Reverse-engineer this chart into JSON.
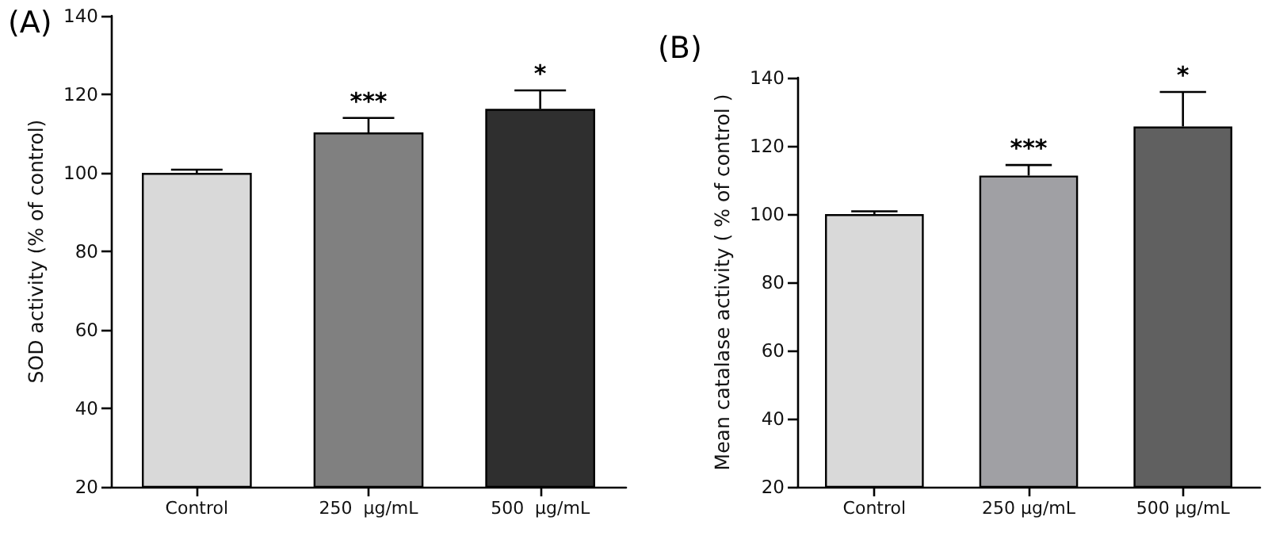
{
  "chart_data": [
    {
      "type": "bar",
      "title": "(A)",
      "ylabel": "SOD activity (% of control)",
      "categories": [
        "Control",
        "250  µg/mL",
        "500  µg/mL"
      ],
      "values": [
        100,
        110.3,
        116.3
      ],
      "colors": [
        "#d9d9d9",
        "#808080",
        "#2f2f2f"
      ],
      "errors": [
        [
          100,
          100.8
        ],
        [
          110.3,
          114
        ],
        [
          116.3,
          121
        ]
      ],
      "ylim": [
        20,
        140
      ],
      "yticks": [
        20,
        40,
        60,
        80,
        100,
        120,
        140
      ],
      "annotations": [
        {
          "text": "***",
          "x": "250  µg/mL",
          "y": 114
        },
        {
          "text": "*",
          "x": "500  µg/mL",
          "y": 121
        }
      ]
    },
    {
      "type": "bar",
      "title": "(B)",
      "ylabel": "Mean catalase activity ( % of control )",
      "categories": [
        "Control",
        "250 µg/mL",
        "500 µg/mL"
      ],
      "values": [
        100,
        111.3,
        125.7
      ],
      "colors": [
        "#d9d9d9",
        "#a0a0a4",
        "#606060"
      ],
      "errors": [
        [
          100,
          100.8
        ],
        [
          111.3,
          114.4
        ],
        [
          125.7,
          135.8
        ]
      ],
      "ylim": [
        20,
        140
      ],
      "yticks": [
        20,
        40,
        60,
        80,
        100,
        120,
        140
      ],
      "annotations": [
        {
          "text": "***",
          "x": "250 µg/mL",
          "y": 114.4
        },
        {
          "text": "*",
          "x": "500 µg/mL",
          "y": 135.8
        }
      ]
    }
  ]
}
